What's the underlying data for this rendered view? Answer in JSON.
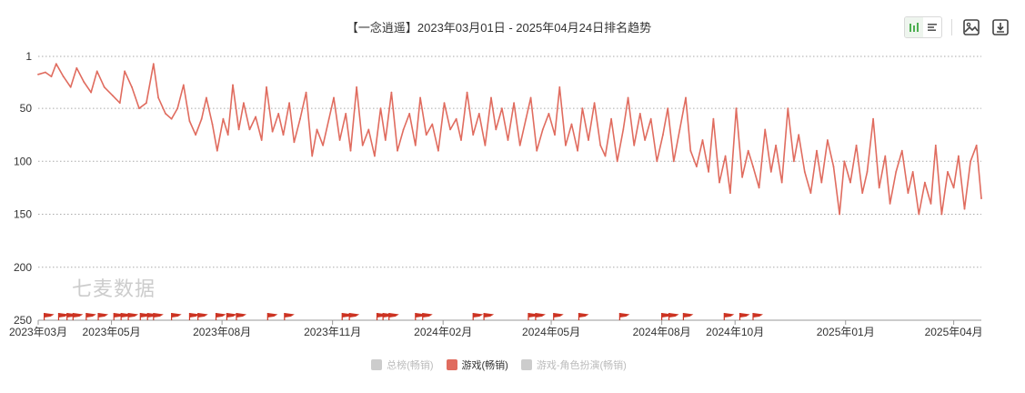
{
  "title": "【一念逍遥】2023年03月01日 - 2025年04月24日排名趋势",
  "watermark": "七麦数据",
  "toolbar": {
    "icons": [
      "bar-chart-icon",
      "list-view-icon",
      "save-image-icon",
      "download-icon"
    ]
  },
  "legend": [
    {
      "label": "总榜(畅销)",
      "color": "#cccccc",
      "active": false
    },
    {
      "label": "游戏(畅销)",
      "color": "#e06c5f",
      "active": true
    },
    {
      "label": "游戏-角色扮演(畅销)",
      "color": "#cccccc",
      "active": false
    }
  ],
  "colors": {
    "line": "#e06c5f",
    "flag": "#cc3322",
    "grid": "#aaaaaa",
    "axis": "#999999"
  },
  "chart_data": {
    "type": "line",
    "title": "【一念逍遥】2023年03月01日 - 2025年04月24日排名趋势",
    "y_inverted": true,
    "ylim": [
      1,
      250
    ],
    "y_ticks": [
      1,
      50,
      100,
      150,
      200,
      250
    ],
    "x_ticks": [
      "2023年03月",
      "2023年05月",
      "2023年08月",
      "2023年11月",
      "2024年02月",
      "2024年05月",
      "2024年08月",
      "2024年10月",
      "2025年01月",
      "2025年04月"
    ],
    "x_tick_dates": [
      "2023-03-01",
      "2023-05-01",
      "2023-08-01",
      "2023-11-01",
      "2024-02-01",
      "2024-05-01",
      "2024-08-01",
      "2024-10-01",
      "2025-01-01",
      "2025-04-01"
    ],
    "x_range": [
      "2023-03-01",
      "2025-04-24"
    ],
    "series": [
      {
        "name": "游戏(畅销)",
        "points": [
          [
            "2023-03-01",
            18
          ],
          [
            "2023-03-07",
            16
          ],
          [
            "2023-03-12",
            20
          ],
          [
            "2023-03-16",
            8
          ],
          [
            "2023-03-22",
            20
          ],
          [
            "2023-03-28",
            30
          ],
          [
            "2023-04-02",
            12
          ],
          [
            "2023-04-08",
            25
          ],
          [
            "2023-04-14",
            35
          ],
          [
            "2023-04-19",
            15
          ],
          [
            "2023-04-25",
            30
          ],
          [
            "2023-05-02",
            38
          ],
          [
            "2023-05-08",
            45
          ],
          [
            "2023-05-12",
            15
          ],
          [
            "2023-05-18",
            30
          ],
          [
            "2023-05-24",
            50
          ],
          [
            "2023-05-30",
            45
          ],
          [
            "2023-06-05",
            8
          ],
          [
            "2023-06-09",
            40
          ],
          [
            "2023-06-15",
            55
          ],
          [
            "2023-06-20",
            60
          ],
          [
            "2023-06-25",
            50
          ],
          [
            "2023-06-30",
            28
          ],
          [
            "2023-07-05",
            62
          ],
          [
            "2023-07-10",
            75
          ],
          [
            "2023-07-15",
            60
          ],
          [
            "2023-07-19",
            40
          ],
          [
            "2023-07-24",
            65
          ],
          [
            "2023-07-28",
            90
          ],
          [
            "2023-08-02",
            60
          ],
          [
            "2023-08-06",
            75
          ],
          [
            "2023-08-10",
            28
          ],
          [
            "2023-08-15",
            70
          ],
          [
            "2023-08-19",
            45
          ],
          [
            "2023-08-24",
            70
          ],
          [
            "2023-08-29",
            58
          ],
          [
            "2023-09-03",
            80
          ],
          [
            "2023-09-07",
            30
          ],
          [
            "2023-09-12",
            72
          ],
          [
            "2023-09-17",
            55
          ],
          [
            "2023-09-21",
            75
          ],
          [
            "2023-09-26",
            45
          ],
          [
            "2023-09-30",
            82
          ],
          [
            "2023-10-05",
            60
          ],
          [
            "2023-10-10",
            35
          ],
          [
            "2023-10-15",
            95
          ],
          [
            "2023-10-19",
            70
          ],
          [
            "2023-10-24",
            85
          ],
          [
            "2023-10-29",
            60
          ],
          [
            "2023-11-02",
            40
          ],
          [
            "2023-11-07",
            80
          ],
          [
            "2023-11-12",
            55
          ],
          [
            "2023-11-16",
            90
          ],
          [
            "2023-11-21",
            30
          ],
          [
            "2023-11-26",
            85
          ],
          [
            "2023-12-01",
            70
          ],
          [
            "2023-12-06",
            95
          ],
          [
            "2023-12-11",
            50
          ],
          [
            "2023-12-15",
            80
          ],
          [
            "2023-12-20",
            35
          ],
          [
            "2023-12-25",
            90
          ],
          [
            "2023-12-30",
            70
          ],
          [
            "2024-01-04",
            55
          ],
          [
            "2024-01-09",
            85
          ],
          [
            "2024-01-13",
            40
          ],
          [
            "2024-01-18",
            75
          ],
          [
            "2024-01-23",
            65
          ],
          [
            "2024-01-28",
            90
          ],
          [
            "2024-02-02",
            45
          ],
          [
            "2024-02-07",
            70
          ],
          [
            "2024-02-12",
            60
          ],
          [
            "2024-02-16",
            80
          ],
          [
            "2024-02-21",
            35
          ],
          [
            "2024-02-26",
            75
          ],
          [
            "2024-03-02",
            55
          ],
          [
            "2024-03-07",
            85
          ],
          [
            "2024-03-12",
            40
          ],
          [
            "2024-03-16",
            70
          ],
          [
            "2024-03-21",
            50
          ],
          [
            "2024-03-26",
            80
          ],
          [
            "2024-03-31",
            45
          ],
          [
            "2024-04-05",
            85
          ],
          [
            "2024-04-10",
            60
          ],
          [
            "2024-04-14",
            40
          ],
          [
            "2024-04-19",
            90
          ],
          [
            "2024-04-24",
            70
          ],
          [
            "2024-04-29",
            55
          ],
          [
            "2024-05-04",
            75
          ],
          [
            "2024-05-08",
            30
          ],
          [
            "2024-05-13",
            85
          ],
          [
            "2024-05-18",
            65
          ],
          [
            "2024-05-23",
            90
          ],
          [
            "2024-05-27",
            50
          ],
          [
            "2024-06-01",
            80
          ],
          [
            "2024-06-06",
            45
          ],
          [
            "2024-06-11",
            85
          ],
          [
            "2024-06-15",
            95
          ],
          [
            "2024-06-20",
            60
          ],
          [
            "2024-06-25",
            100
          ],
          [
            "2024-06-30",
            70
          ],
          [
            "2024-07-04",
            40
          ],
          [
            "2024-07-09",
            85
          ],
          [
            "2024-07-14",
            55
          ],
          [
            "2024-07-18",
            80
          ],
          [
            "2024-07-23",
            60
          ],
          [
            "2024-07-28",
            100
          ],
          [
            "2024-08-02",
            75
          ],
          [
            "2024-08-06",
            50
          ],
          [
            "2024-08-11",
            100
          ],
          [
            "2024-08-16",
            70
          ],
          [
            "2024-08-21",
            40
          ],
          [
            "2024-08-25",
            90
          ],
          [
            "2024-08-30",
            105
          ],
          [
            "2024-09-04",
            80
          ],
          [
            "2024-09-09",
            110
          ],
          [
            "2024-09-13",
            60
          ],
          [
            "2024-09-18",
            120
          ],
          [
            "2024-09-23",
            95
          ],
          [
            "2024-09-27",
            130
          ],
          [
            "2024-10-02",
            50
          ],
          [
            "2024-10-07",
            115
          ],
          [
            "2024-10-12",
            90
          ],
          [
            "2024-10-16",
            105
          ],
          [
            "2024-10-21",
            125
          ],
          [
            "2024-10-26",
            70
          ],
          [
            "2024-10-31",
            110
          ],
          [
            "2024-11-04",
            85
          ],
          [
            "2024-11-09",
            120
          ],
          [
            "2024-11-14",
            50
          ],
          [
            "2024-11-19",
            100
          ],
          [
            "2024-11-23",
            75
          ],
          [
            "2024-11-28",
            110
          ],
          [
            "2024-12-03",
            130
          ],
          [
            "2024-12-08",
            90
          ],
          [
            "2024-12-12",
            120
          ],
          [
            "2024-12-17",
            80
          ],
          [
            "2024-12-22",
            105
          ],
          [
            "2024-12-27",
            150
          ],
          [
            "2024-12-31",
            100
          ],
          [
            "2025-01-05",
            120
          ],
          [
            "2025-01-10",
            85
          ],
          [
            "2025-01-15",
            130
          ],
          [
            "2025-01-19",
            110
          ],
          [
            "2025-01-24",
            60
          ],
          [
            "2025-01-29",
            125
          ],
          [
            "2025-02-03",
            95
          ],
          [
            "2025-02-07",
            140
          ],
          [
            "2025-02-12",
            110
          ],
          [
            "2025-02-17",
            90
          ],
          [
            "2025-02-22",
            130
          ],
          [
            "2025-02-26",
            110
          ],
          [
            "2025-03-03",
            150
          ],
          [
            "2025-03-08",
            120
          ],
          [
            "2025-03-13",
            140
          ],
          [
            "2025-03-17",
            85
          ],
          [
            "2025-03-22",
            150
          ],
          [
            "2025-03-27",
            110
          ],
          [
            "2025-04-01",
            125
          ],
          [
            "2025-04-05",
            95
          ],
          [
            "2025-04-10",
            145
          ],
          [
            "2025-04-15",
            100
          ],
          [
            "2025-04-20",
            85
          ],
          [
            "2025-04-24",
            135
          ]
        ]
      }
    ],
    "event_flag_dates": [
      "2023-03-06",
      "2023-03-18",
      "2023-03-25",
      "2023-03-30",
      "2023-04-10",
      "2023-04-20",
      "2023-05-03",
      "2023-05-09",
      "2023-05-15",
      "2023-05-25",
      "2023-05-31",
      "2023-06-05",
      "2023-06-20",
      "2023-07-05",
      "2023-07-12",
      "2023-07-27",
      "2023-08-05",
      "2023-08-13",
      "2023-09-08",
      "2023-09-22",
      "2023-11-09",
      "2023-11-15",
      "2023-12-08",
      "2023-12-13",
      "2023-12-18",
      "2024-01-09",
      "2024-01-15",
      "2024-02-26",
      "2024-03-06",
      "2024-04-12",
      "2024-04-18",
      "2024-05-03",
      "2024-05-24",
      "2024-06-27",
      "2024-08-01",
      "2024-08-07",
      "2024-08-19",
      "2024-09-22",
      "2024-10-05",
      "2024-10-16"
    ]
  }
}
